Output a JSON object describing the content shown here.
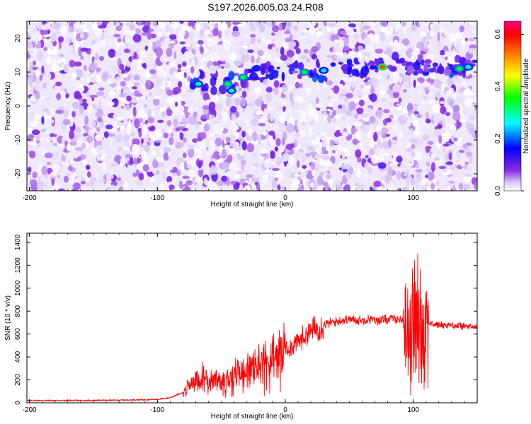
{
  "title": "S197.2026.005.03.24.R08",
  "chart_data": [
    {
      "type": "heatmap",
      "title": "S197.2026.005.03.24.R08",
      "xlabel": "Height of straight line (km)",
      "ylabel": "Frequency (Hz)",
      "xlim": [
        -202,
        150
      ],
      "ylim": [
        -25,
        25
      ],
      "xticks": [
        -200,
        -100,
        0,
        100
      ],
      "yticks": [
        -20,
        -10,
        0,
        10,
        20
      ],
      "colorbar": {
        "label": "Normalized spectral amplitude",
        "range": [
          0.0,
          0.65
        ],
        "ticks": [
          0.0,
          0.2,
          0.4,
          0.6
        ],
        "colormap": [
          "#ffffff",
          "#8a2be2",
          "#0000ff",
          "#00ffff",
          "#00ff00",
          "#ffff00",
          "#ff7f00",
          "#ff0000",
          "#ff0080"
        ]
      },
      "ridge": {
        "description_points_x": [
          -70,
          -45,
          -30,
          -10,
          15,
          40,
          60,
          76,
          100,
          130,
          148
        ],
        "description_points_y": [
          7,
          7,
          9,
          10,
          10,
          10.5,
          11,
          11.5,
          11.5,
          11,
          11.5
        ]
      },
      "hotspots": [
        {
          "x": -68,
          "y": 6.5,
          "v": 0.3
        },
        {
          "x": -45,
          "y": 6.5,
          "v": 0.35
        },
        {
          "x": -42,
          "y": 4.5,
          "v": 0.3
        },
        {
          "x": -33,
          "y": 8.5,
          "v": 0.35
        },
        {
          "x": 15,
          "y": 10,
          "v": 0.35
        },
        {
          "x": 30,
          "y": 10.5,
          "v": 0.25
        },
        {
          "x": 76,
          "y": 11.5,
          "v": 0.55
        },
        {
          "x": 136,
          "y": 11,
          "v": 0.35
        },
        {
          "x": 143,
          "y": 11.5,
          "v": 0.3
        }
      ],
      "grid": false
    },
    {
      "type": "line",
      "xlabel": "Height of straight line (km)",
      "ylabel": "SNR (10 * v/v)",
      "xlim": [
        -202,
        150
      ],
      "ylim": [
        0,
        1480
      ],
      "xticks": [
        -200,
        -100,
        0,
        100
      ],
      "yticks": [
        0,
        200,
        400,
        600,
        800,
        1000,
        1200,
        1400
      ],
      "series": [
        {
          "color": "#ff0000",
          "x": [
            -202,
            -180,
            -150,
            -120,
            -100,
            -90,
            -80,
            -75,
            -70,
            -65,
            -60,
            -55,
            -50,
            -45,
            -40,
            -35,
            -30,
            -25,
            -20,
            -15,
            -10,
            -5,
            0,
            5,
            10,
            15,
            20,
            25,
            30,
            35,
            40,
            45,
            50,
            55,
            60,
            65,
            70,
            75,
            80,
            85,
            90,
            93,
            96,
            98,
            100,
            102,
            104,
            106,
            108,
            110,
            115,
            120,
            125,
            130,
            135,
            140,
            145,
            150
          ],
          "y": [
            20,
            20,
            20,
            25,
            30,
            45,
            90,
            160,
            210,
            240,
            200,
            190,
            180,
            230,
            260,
            280,
            290,
            320,
            360,
            370,
            390,
            420,
            460,
            500,
            540,
            580,
            620,
            650,
            680,
            700,
            710,
            720,
            730,
            720,
            720,
            730,
            720,
            720,
            730,
            740,
            720,
            720,
            700,
            650,
            700,
            760,
            700,
            640,
            700,
            700,
            690,
            680,
            680,
            680,
            670,
            670,
            660,
            660
          ]
        }
      ],
      "grid": false
    }
  ]
}
